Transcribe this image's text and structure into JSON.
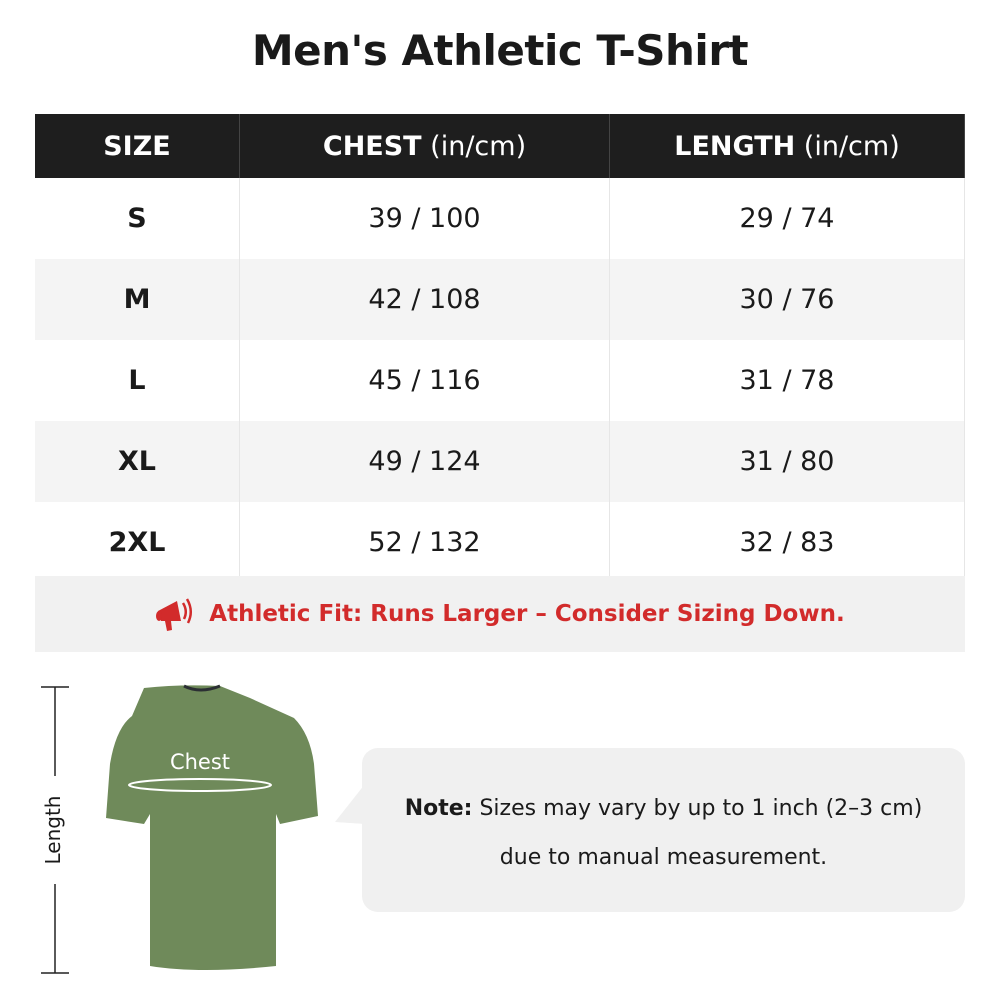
{
  "title": "Men's Athletic T-Shirt",
  "table": {
    "headers": [
      {
        "label": "SIZE",
        "unit": ""
      },
      {
        "label": "CHEST",
        "unit": " (in/cm)"
      },
      {
        "label": "LENGTH",
        "unit": " (in/cm)"
      }
    ],
    "rows": [
      {
        "size": "S",
        "chest": "39 / 100",
        "length": "29 / 74"
      },
      {
        "size": "M",
        "chest": "42 / 108",
        "length": "30 / 76"
      },
      {
        "size": "L",
        "chest": "45 / 116",
        "length": "31 / 78"
      },
      {
        "size": "XL",
        "chest": "49 / 124",
        "length": "31 / 80"
      },
      {
        "size": "2XL",
        "chest": "52 / 132",
        "length": "32 / 83"
      }
    ]
  },
  "fit_notice": {
    "icon": "megaphone-icon",
    "text": "Athletic Fit: Runs Larger – Consider Sizing Down.",
    "color": "#d22b2b"
  },
  "diagram": {
    "chest_label": "Chest",
    "length_label": "Length",
    "shirt_color": "#6f8a5a"
  },
  "note": {
    "label": "Note:",
    "line1": " Sizes may vary by up to 1 inch (2–3 cm)",
    "line2": "due to manual measurement."
  }
}
